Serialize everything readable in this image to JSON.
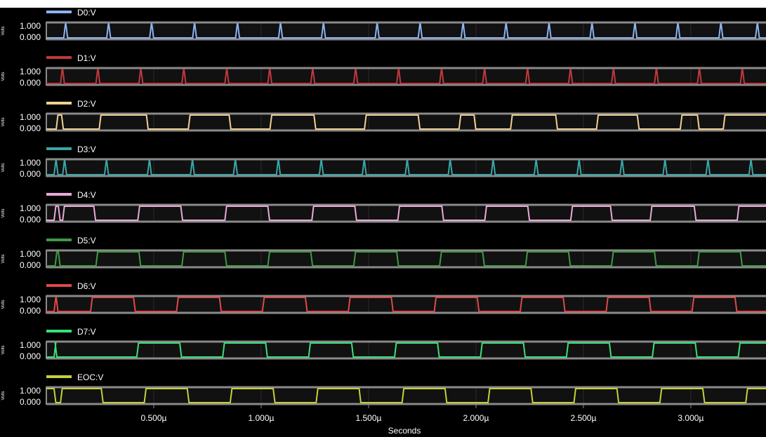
{
  "chart_data": {
    "type": "line",
    "chart_kind": "stacked digital waveform traces",
    "x_unit_axis_label": "Seconds",
    "x_ticks": [
      "0.500µ",
      "1.000µ",
      "1.500µ",
      "2.000µ",
      "2.500µ",
      "3.000µ"
    ],
    "x_tick_values": [
      0.5,
      1.0,
      1.5,
      2.0,
      2.5,
      3.0
    ],
    "xlim": [
      0.0,
      3.35
    ],
    "y_tick_labels": [
      "1.000",
      "0.000"
    ],
    "y_tick_values": [
      1.0,
      0.0
    ],
    "y_axis_label": "Volts",
    "ylim": [
      0,
      1
    ],
    "grid": true,
    "legend_placement": "above each trace, left",
    "series": [
      {
        "name": "D0:V",
        "color": "#8bb4f0",
        "pulses": [
          0.085,
          0.285,
          0.485,
          0.685,
          0.885,
          1.085,
          1.285,
          1.535,
          1.735,
          1.935,
          2.135,
          2.335,
          2.535,
          2.735,
          2.935,
          3.135,
          3.305
        ],
        "pulse_width_us": 0.01
      },
      {
        "name": "D1:V",
        "color": "#c0393b",
        "pulses": [
          0.07,
          0.235,
          0.435,
          0.635,
          0.835,
          1.035,
          1.235,
          1.435,
          1.635,
          1.835,
          2.035,
          2.235,
          2.435,
          2.635,
          2.835,
          3.035,
          3.235
        ],
        "pulse_width_us": 0.01
      },
      {
        "name": "D2:V",
        "color": "#f0d090",
        "edges": [
          0.05,
          0.075,
          0.25,
          0.47,
          0.665,
          0.855,
          1.045,
          1.25,
          1.485,
          1.735,
          1.925,
          1.995,
          2.165,
          2.375,
          2.565,
          2.755,
          2.955,
          3.035,
          3.155
        ],
        "initial_level": 0
      },
      {
        "name": "D3:V",
        "color": "#3aa6a8",
        "pulses": [
          0.04,
          0.08,
          0.275,
          0.475,
          0.675,
          0.875,
          1.075,
          1.275,
          1.475,
          1.675,
          1.875,
          2.075,
          2.275,
          2.475,
          2.675,
          2.875,
          3.075,
          3.275
        ],
        "pulse_width_us": 0.01
      },
      {
        "name": "D4:V",
        "color": "#e9a9d6",
        "edges": [
          0.04,
          0.06,
          0.08,
          0.225,
          0.43,
          0.63,
          0.835,
          1.035,
          1.24,
          1.44,
          1.64,
          1.845,
          2.045,
          2.245,
          2.445,
          2.63,
          2.815,
          3.02,
          3.22
        ],
        "initial_level": 0
      },
      {
        "name": "D5:V",
        "color": "#3e9a43",
        "edges": [
          0.045,
          0.06,
          0.235,
          0.435,
          0.635,
          0.835,
          1.035,
          1.235,
          1.435,
          1.635,
          1.835,
          2.035,
          2.235,
          2.435,
          2.635,
          2.835,
          3.035,
          3.235
        ],
        "initial_level": 0
      },
      {
        "name": "D6:V",
        "color": "#e0484a",
        "edges": [
          0.04,
          0.05,
          0.21,
          0.41,
          0.61,
          0.81,
          1.01,
          1.21,
          1.41,
          1.61,
          1.81,
          2.01,
          2.21,
          2.41,
          2.61,
          2.81,
          3.01,
          3.21
        ],
        "initial_level": 0
      },
      {
        "name": "D7:V",
        "color": "#3ae07a",
        "edges": [
          0.04,
          0.045,
          0.425,
          0.625,
          0.825,
          1.025,
          1.225,
          1.425,
          1.625,
          1.825,
          2.025,
          2.225,
          2.425,
          2.625,
          2.825,
          3.025,
          3.225
        ],
        "initial_level": 0
      },
      {
        "name": "EOC:V",
        "color": "#c6d03a",
        "edges": [
          0.04,
          0.07,
          0.26,
          0.46,
          0.66,
          0.86,
          1.06,
          1.26,
          1.46,
          1.66,
          1.86,
          2.06,
          2.26,
          2.46,
          2.66,
          2.86,
          3.06,
          3.26
        ],
        "initial_level": 1
      }
    ]
  }
}
